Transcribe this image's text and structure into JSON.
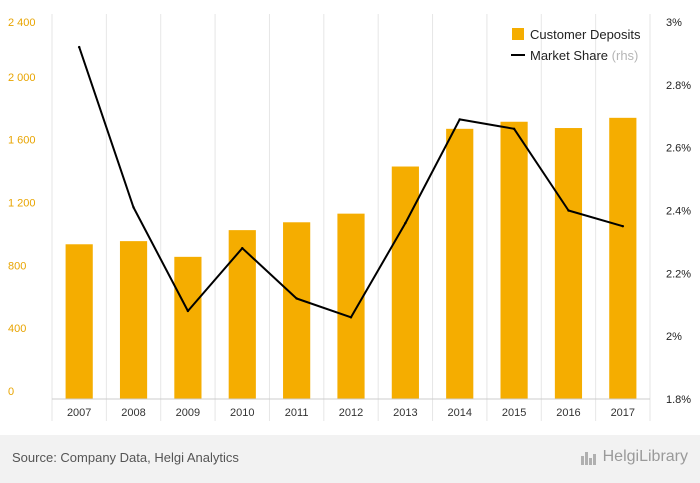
{
  "chart_data": {
    "type": "bar+line",
    "categories": [
      "2007",
      "2008",
      "2009",
      "2010",
      "2011",
      "2012",
      "2013",
      "2014",
      "2015",
      "2016",
      "2017"
    ],
    "series": [
      {
        "name": "Customer Deposits",
        "type": "bar",
        "axis": "left",
        "values": [
          985,
          1005,
          905,
          1075,
          1125,
          1180,
          1480,
          1720,
          1765,
          1725,
          1790
        ]
      },
      {
        "name": "Market Share",
        "name_suffix": "(rhs)",
        "type": "line",
        "axis": "right",
        "values": [
          2.92,
          2.41,
          2.08,
          2.28,
          2.12,
          2.06,
          2.36,
          2.69,
          2.66,
          2.4,
          2.35
        ]
      }
    ],
    "y_left": {
      "min": 0,
      "max": 2400,
      "ticks": [
        0,
        400,
        800,
        1200,
        1600,
        2000,
        2400
      ],
      "tick_labels": [
        "0",
        "400",
        "800",
        "1 200",
        "1 600",
        "2 000",
        "2 400"
      ]
    },
    "y_right": {
      "min": 1.8,
      "max": 3.0,
      "ticks": [
        1.8,
        2.0,
        2.2,
        2.4,
        2.6,
        2.8,
        3.0
      ],
      "tick_labels": [
        "1.8%",
        "2%",
        "2.2%",
        "2.4%",
        "2.6%",
        "2.8%",
        "3%"
      ]
    },
    "legend_position": "top-right",
    "grid": "vertical",
    "colors": {
      "bar": "#f5ad00",
      "line": "#000000",
      "left_axis_text": "#e8a400",
      "right_axis_text": "#222222",
      "grid": "#e6e6e6"
    }
  },
  "footer": {
    "source": "Source: Company Data, Helgi Analytics",
    "brand": "HelgiLibrary",
    "brand_icon": "library-bars-icon"
  }
}
